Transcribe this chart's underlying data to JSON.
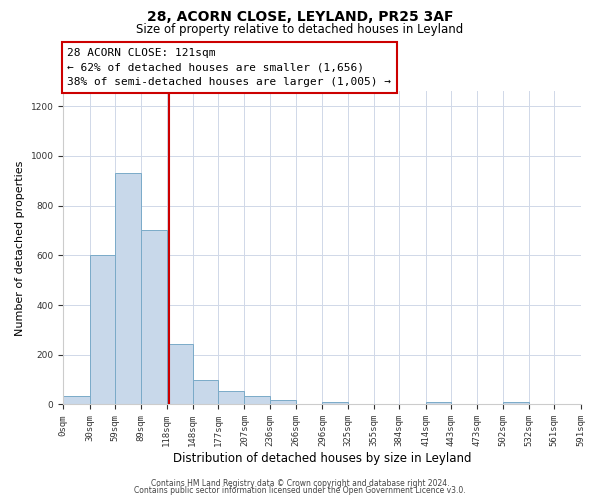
{
  "title": "28, ACORN CLOSE, LEYLAND, PR25 3AF",
  "subtitle": "Size of property relative to detached houses in Leyland",
  "xlabel": "Distribution of detached houses by size in Leyland",
  "ylabel": "Number of detached properties",
  "bin_edges": [
    0,
    30,
    59,
    89,
    118,
    148,
    177,
    207,
    236,
    266,
    296,
    325,
    355,
    384,
    414,
    443,
    473,
    502,
    532,
    561,
    591
  ],
  "bar_heights": [
    35,
    600,
    930,
    700,
    245,
    100,
    55,
    35,
    20,
    0,
    8,
    0,
    0,
    0,
    10,
    0,
    0,
    8,
    0,
    0
  ],
  "bar_color": "#c8d8ea",
  "bar_edgecolor": "#7aaac8",
  "vline_x": 121,
  "vline_color": "#cc0000",
  "annotation_title": "28 ACORN CLOSE: 121sqm",
  "annotation_line1": "← 62% of detached houses are smaller (1,656)",
  "annotation_line2": "38% of semi-detached houses are larger (1,005) →",
  "annotation_box_edgecolor": "#cc0000",
  "ylim": [
    0,
    1260
  ],
  "yticks": [
    0,
    200,
    400,
    600,
    800,
    1000,
    1200
  ],
  "tick_labels": [
    "0sqm",
    "30sqm",
    "59sqm",
    "89sqm",
    "118sqm",
    "148sqm",
    "177sqm",
    "207sqm",
    "236sqm",
    "266sqm",
    "296sqm",
    "325sqm",
    "355sqm",
    "384sqm",
    "414sqm",
    "443sqm",
    "473sqm",
    "502sqm",
    "532sqm",
    "561sqm",
    "591sqm"
  ],
  "footer1": "Contains HM Land Registry data © Crown copyright and database right 2024.",
  "footer2": "Contains public sector information licensed under the Open Government Licence v3.0.",
  "background_color": "#ffffff",
  "grid_color": "#d0d8e8"
}
